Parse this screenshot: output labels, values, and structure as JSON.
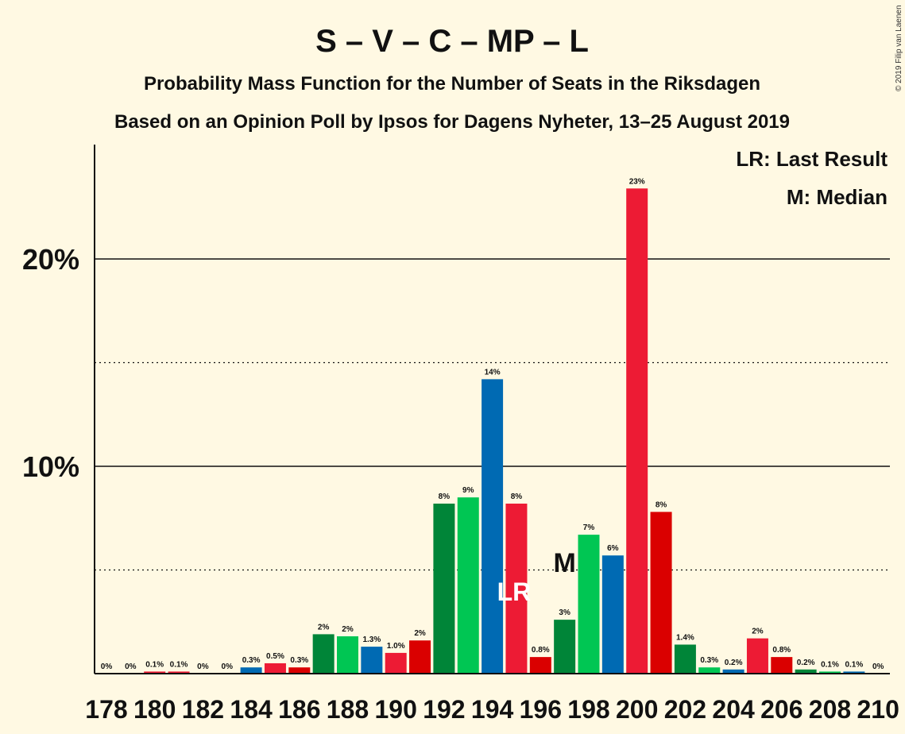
{
  "title": "S – V – C – MP – L",
  "subtitle1": "Probability Mass Function for the Number of Seats in the Riksdagen",
  "subtitle2": "Based on an Opinion Poll by Ipsos for Dagens Nyheter, 13–25 August 2019",
  "credit": "© 2019 Filip van Laenen",
  "legend": {
    "lr": "LR: Last Result",
    "m": "M: Median"
  },
  "markers": {
    "lr_label": "LR",
    "lr_seat": 195,
    "m_label": "M",
    "m_seat": 197
  },
  "colors": {
    "background": "#FFF9E3",
    "S_red": "#ED1B34",
    "V_red": "#DA291C",
    "C_darkgreen": "#009933",
    "MP_green": "#83CF39",
    "L_blue": "#006AB3"
  },
  "chart_data": {
    "type": "bar",
    "xlabel": "",
    "ylabel": "",
    "ylim": [
      0,
      25
    ],
    "yticks": [
      {
        "value": 10,
        "label": "10%"
      },
      {
        "value": 20,
        "label": "20%"
      }
    ],
    "dotted_gridlines": [
      5,
      15
    ],
    "xtick_labels": [
      "178",
      "180",
      "182",
      "184",
      "186",
      "188",
      "190",
      "192",
      "194",
      "196",
      "198",
      "200",
      "202",
      "204",
      "206",
      "208",
      "210"
    ],
    "bars": [
      {
        "seat": 178,
        "value": 0.0,
        "label": "0%",
        "color": "#ED1B34"
      },
      {
        "seat": 179,
        "value": 0.0,
        "label": "0%",
        "color": "#ED1B34"
      },
      {
        "seat": 180,
        "value": 0.1,
        "label": "0.1%",
        "color": "#ED1B34"
      },
      {
        "seat": 181,
        "value": 0.1,
        "label": "0.1%",
        "color": "#ED1B34"
      },
      {
        "seat": 182,
        "value": 0.0,
        "label": "0%",
        "color": "#ED1B34"
      },
      {
        "seat": 183,
        "value": 0.0,
        "label": "0%",
        "color": "#ED1B34"
      },
      {
        "seat": 184,
        "value": 0.3,
        "label": "0.3%",
        "color": "#006AB3"
      },
      {
        "seat": 185,
        "value": 0.5,
        "label": "0.5%",
        "color": "#ED1B34"
      },
      {
        "seat": 186,
        "value": 0.3,
        "label": "0.3%",
        "color": "#DA0000"
      },
      {
        "seat": 187,
        "value": 1.9,
        "label": "2%",
        "color": "#008538"
      },
      {
        "seat": 188,
        "value": 1.8,
        "label": "2%",
        "color": "#00C653"
      },
      {
        "seat": 189,
        "value": 1.3,
        "label": "1.3%",
        "color": "#006AB3"
      },
      {
        "seat": 190,
        "value": 1.0,
        "label": "1.0%",
        "color": "#ED1B34"
      },
      {
        "seat": 191,
        "value": 1.6,
        "label": "2%",
        "color": "#DA0000"
      },
      {
        "seat": 192,
        "value": 8.2,
        "label": "8%",
        "color": "#008538"
      },
      {
        "seat": 193,
        "value": 8.5,
        "label": "9%",
        "color": "#00C653"
      },
      {
        "seat": 194,
        "value": 14.2,
        "label": "14%",
        "color": "#006AB3"
      },
      {
        "seat": 195,
        "value": 8.2,
        "label": "8%",
        "color": "#ED1B34"
      },
      {
        "seat": 196,
        "value": 0.8,
        "label": "0.8%",
        "color": "#DA0000"
      },
      {
        "seat": 197,
        "value": 2.6,
        "label": "3%",
        "color": "#008538"
      },
      {
        "seat": 198,
        "value": 6.7,
        "label": "7%",
        "color": "#00C653"
      },
      {
        "seat": 199,
        "value": 5.7,
        "label": "6%",
        "color": "#006AB3"
      },
      {
        "seat": 200,
        "value": 23.4,
        "label": "23%",
        "color": "#ED1B34"
      },
      {
        "seat": 201,
        "value": 7.8,
        "label": "8%",
        "color": "#DA0000"
      },
      {
        "seat": 202,
        "value": 1.4,
        "label": "1.4%",
        "color": "#008538"
      },
      {
        "seat": 203,
        "value": 0.3,
        "label": "0.3%",
        "color": "#00C653"
      },
      {
        "seat": 204,
        "value": 0.2,
        "label": "0.2%",
        "color": "#006AB3"
      },
      {
        "seat": 205,
        "value": 1.7,
        "label": "2%",
        "color": "#ED1B34"
      },
      {
        "seat": 206,
        "value": 0.8,
        "label": "0.8%",
        "color": "#DA0000"
      },
      {
        "seat": 207,
        "value": 0.2,
        "label": "0.2%",
        "color": "#008538"
      },
      {
        "seat": 208,
        "value": 0.1,
        "label": "0.1%",
        "color": "#00C653"
      },
      {
        "seat": 209,
        "value": 0.1,
        "label": "0.1%",
        "color": "#006AB3"
      },
      {
        "seat": 210,
        "value": 0.0,
        "label": "0%",
        "color": "#ED1B34"
      }
    ]
  }
}
